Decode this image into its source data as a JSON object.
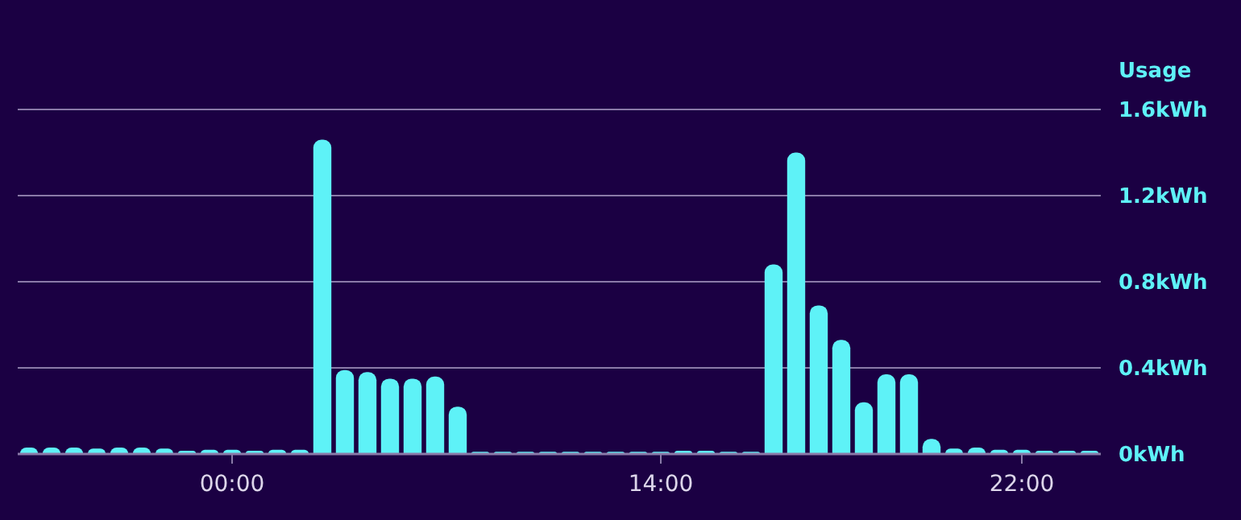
{
  "chart_data": {
    "type": "bar",
    "ylabel": "Usage",
    "categories": [
      null,
      null,
      null,
      null,
      null,
      null,
      null,
      null,
      null,
      "00:00",
      null,
      null,
      null,
      null,
      null,
      null,
      null,
      null,
      null,
      null,
      null,
      null,
      null,
      null,
      null,
      null,
      null,
      null,
      "14:00",
      null,
      null,
      null,
      null,
      null,
      null,
      null,
      null,
      null,
      null,
      null,
      null,
      null,
      null,
      null,
      "22:00",
      null,
      null,
      null
    ],
    "values": [
      0.03,
      0.03,
      0.03,
      0.025,
      0.03,
      0.03,
      0.025,
      0.015,
      0.02,
      0.02,
      0.015,
      0.02,
      0.02,
      1.46,
      0.39,
      0.38,
      0.35,
      0.35,
      0.36,
      0.22,
      0.01,
      0.01,
      0.01,
      0.01,
      0.01,
      0.01,
      0.01,
      0.01,
      0.01,
      0.015,
      0.015,
      0.01,
      0.01,
      0.88,
      1.4,
      0.69,
      0.53,
      0.24,
      0.37,
      0.37,
      0.07,
      0.025,
      0.03,
      0.02,
      0.02,
      0.015,
      0.015,
      0.015
    ],
    "color": "#5ef2f7",
    "ylim": [
      0,
      1.6
    ],
    "yticks": [
      {
        "value": 0,
        "label": "0kWh"
      },
      {
        "value": 0.4,
        "label": "0.4kWh"
      },
      {
        "value": 0.8,
        "label": "0.8kWh"
      },
      {
        "value": 1.2,
        "label": "1.2kWh"
      },
      {
        "value": 1.6,
        "label": "1.6kWh"
      }
    ],
    "grid": "y"
  }
}
